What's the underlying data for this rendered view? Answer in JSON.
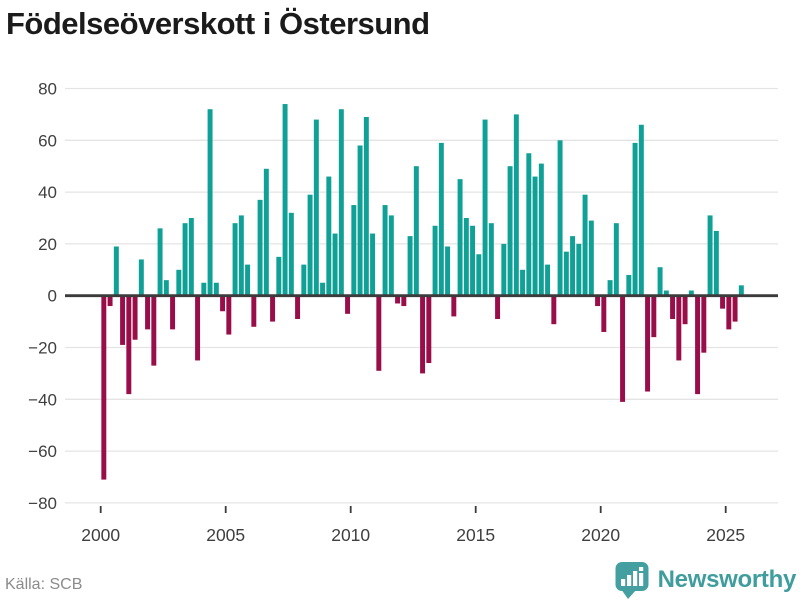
{
  "title": "Födelseöverskott i Östersund",
  "source": {
    "label": "Källa: SCB"
  },
  "branding": {
    "name": "Newsworthy",
    "logo_icon": "newsworthy-marker-barchart-icon"
  },
  "colors": {
    "positive": "#0FA096",
    "negative": "#990D49",
    "grid": "#E4E4E4",
    "zero_line": "#3B3B3B",
    "axis_text": "#3F3F3F",
    "title_text": "#1B1B1B",
    "source_text": "#8B8B8B",
    "brand": "#44A0A0",
    "brand_text": "#3F9D9D"
  },
  "chart_data": {
    "type": "bar",
    "title": "Födelseöverskott i Östersund",
    "xlabel": "",
    "ylabel": "",
    "ylim": [
      -80,
      80
    ],
    "grid": "horizontal",
    "legend": "none",
    "frequency": "quarterly",
    "y_tick_labels": [
      "80",
      "60",
      "40",
      "20",
      "0",
      "−20",
      "−40",
      "−60",
      "−80"
    ],
    "y_tick_values": [
      80,
      60,
      40,
      20,
      0,
      -20,
      -40,
      -60,
      -80
    ],
    "x_tick_labels": [
      "2000",
      "2005",
      "2010",
      "2015",
      "2020",
      "2025"
    ],
    "series": [
      {
        "year": 2000,
        "quarters": [
          -71,
          -4,
          19,
          -19
        ]
      },
      {
        "year": 2001,
        "quarters": [
          -38,
          -17,
          14,
          -13
        ]
      },
      {
        "year": 2002,
        "quarters": [
          -27,
          26,
          6,
          -13
        ]
      },
      {
        "year": 2003,
        "quarters": [
          10,
          28,
          30,
          -25
        ]
      },
      {
        "year": 2004,
        "quarters": [
          5,
          72,
          5,
          -6
        ]
      },
      {
        "year": 2005,
        "quarters": [
          -15,
          28,
          31,
          12
        ]
      },
      {
        "year": 2006,
        "quarters": [
          -12,
          37,
          49,
          -10
        ]
      },
      {
        "year": 2007,
        "quarters": [
          15,
          74,
          32,
          -9
        ]
      },
      {
        "year": 2008,
        "quarters": [
          12,
          39,
          68,
          5
        ]
      },
      {
        "year": 2009,
        "quarters": [
          46,
          24,
          72,
          -7
        ]
      },
      {
        "year": 2010,
        "quarters": [
          35,
          58,
          69,
          24
        ]
      },
      {
        "year": 2011,
        "quarters": [
          -29,
          35,
          31,
          -3
        ]
      },
      {
        "year": 2012,
        "quarters": [
          -4,
          23,
          50,
          -30
        ]
      },
      {
        "year": 2013,
        "quarters": [
          -26,
          27,
          59,
          19
        ]
      },
      {
        "year": 2014,
        "quarters": [
          -8,
          45,
          30,
          27
        ]
      },
      {
        "year": 2015,
        "quarters": [
          16,
          68,
          28,
          -9
        ]
      },
      {
        "year": 2016,
        "quarters": [
          20,
          50,
          70,
          10
        ]
      },
      {
        "year": 2017,
        "quarters": [
          55,
          46,
          51,
          12
        ]
      },
      {
        "year": 2018,
        "quarters": [
          -11,
          60,
          17,
          23
        ]
      },
      {
        "year": 2019,
        "quarters": [
          20,
          39,
          29,
          -4
        ]
      },
      {
        "year": 2020,
        "quarters": [
          -14,
          6,
          28,
          -41
        ]
      },
      {
        "year": 2021,
        "quarters": [
          8,
          59,
          66,
          -37
        ]
      },
      {
        "year": 2022,
        "quarters": [
          -16,
          11,
          2,
          -9
        ]
      },
      {
        "year": 2023,
        "quarters": [
          -25,
          -11,
          2,
          -38
        ]
      },
      {
        "year": 2024,
        "quarters": [
          -22,
          31,
          25,
          -5
        ]
      },
      {
        "year": 2025,
        "quarters": [
          -13,
          -10,
          4
        ]
      }
    ]
  }
}
